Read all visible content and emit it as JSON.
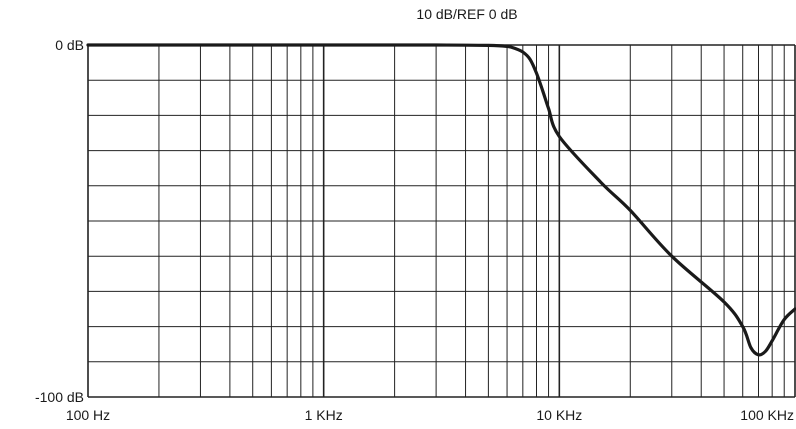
{
  "chart_data": {
    "type": "line",
    "title": "10 dB/REF 0 dB",
    "xlabel": "",
    "ylabel": "",
    "x_scale": "log",
    "xlim": [
      100,
      100000
    ],
    "ylim": [
      -100,
      0
    ],
    "grid": true,
    "x_tick_labels": [
      "100 Hz",
      "1 KHz",
      "10 KHz",
      "100 KHz"
    ],
    "x_tick_values": [
      100,
      1000,
      10000,
      100000
    ],
    "y_tick_labels": [
      "0 dB",
      "-100 dB"
    ],
    "y_tick_values": [
      0,
      -100
    ],
    "colors": {
      "line": "#1a1a1a",
      "grid": "#222222",
      "text": "#1a1a1a"
    },
    "series": [
      {
        "x": [
          100,
          500,
          1000,
          3000,
          5000,
          6000,
          6500,
          7000,
          7500,
          8000,
          8500,
          9000,
          10000,
          15000,
          20000,
          30000,
          50000,
          60000,
          65000,
          70000,
          75000,
          80000,
          90000,
          100000
        ],
        "y": [
          0,
          0,
          0,
          0,
          -0.1,
          -0.4,
          -1,
          -2,
          -4,
          -8,
          -13,
          -18,
          -26,
          -39,
          -47,
          -60,
          -73,
          -80,
          -86,
          -88,
          -87,
          -84,
          -78,
          -75
        ]
      }
    ]
  }
}
